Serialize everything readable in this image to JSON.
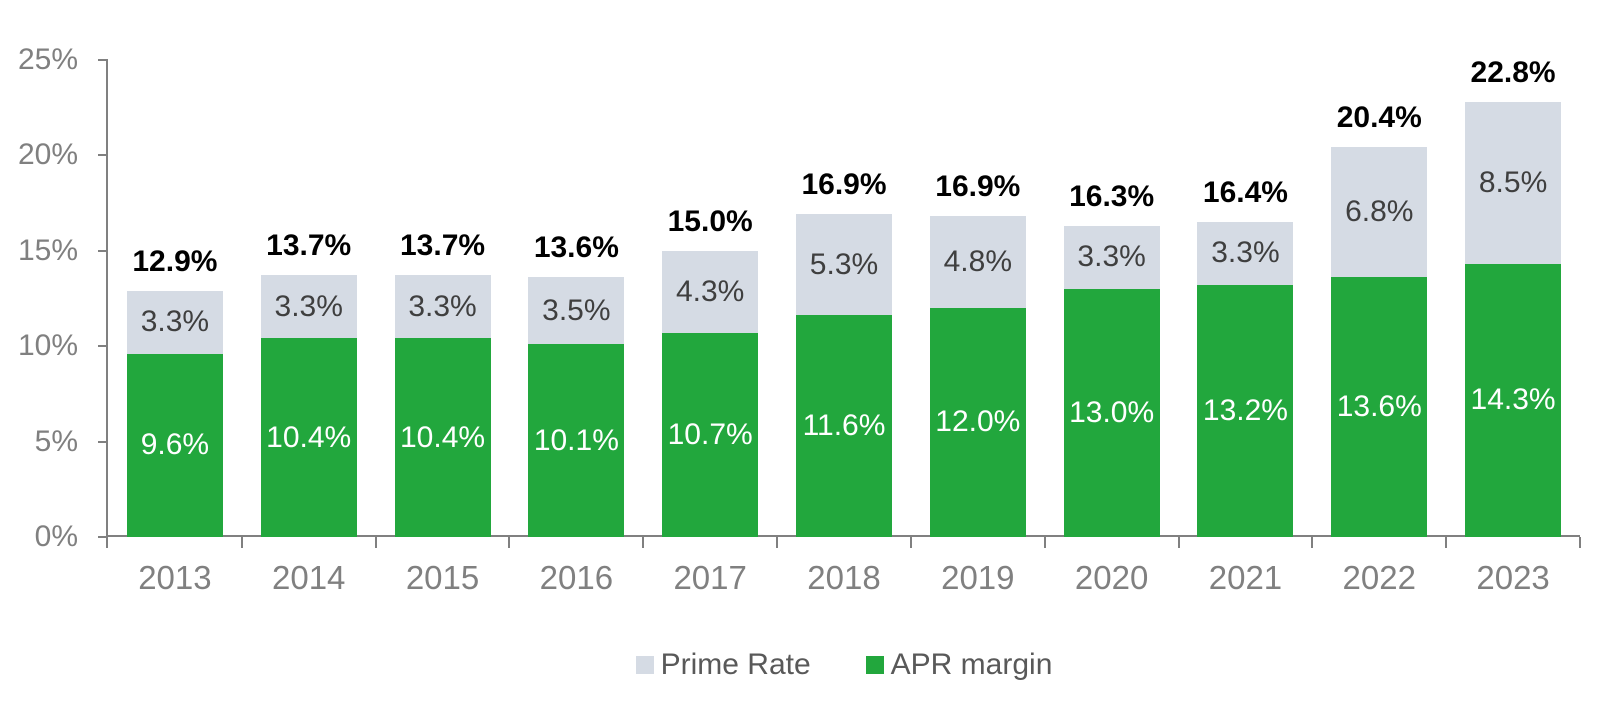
{
  "chart_data": {
    "type": "bar",
    "stacked": true,
    "title": "",
    "xlabel": "",
    "ylabel": "",
    "categories": [
      "2013",
      "2014",
      "2015",
      "2016",
      "2017",
      "2018",
      "2019",
      "2020",
      "2021",
      "2022",
      "2023"
    ],
    "series": [
      {
        "name": "APR margin",
        "color": "#22A73D",
        "label_color": "#ffffff",
        "values": [
          9.6,
          10.4,
          10.4,
          10.1,
          10.7,
          11.6,
          12.0,
          13.0,
          13.2,
          13.6,
          14.3
        ]
      },
      {
        "name": "Prime Rate",
        "color": "#D5DBE4",
        "label_color": "#3f3f3f",
        "values": [
          3.3,
          3.3,
          3.3,
          3.5,
          4.3,
          5.3,
          4.8,
          3.3,
          3.3,
          6.8,
          8.5
        ]
      }
    ],
    "totals": [
      12.9,
      13.7,
      13.7,
      13.6,
      15.0,
      16.9,
      16.9,
      16.3,
      16.4,
      20.4,
      22.8
    ],
    "value_suffix": "%",
    "ylim": [
      0,
      25
    ],
    "ytick_step": 5,
    "ytick_labels": [
      "0%",
      "5%",
      "10%",
      "15%",
      "20%",
      "25%"
    ],
    "grid": false,
    "legend_position": "bottom",
    "legend": [
      {
        "label": "Prime Rate",
        "color": "#D5DBE4"
      },
      {
        "label": "APR margin",
        "color": "#22A73D"
      }
    ],
    "axis_color": "#808080",
    "tick_label_color": "#808080",
    "total_label_color": "#000000"
  }
}
